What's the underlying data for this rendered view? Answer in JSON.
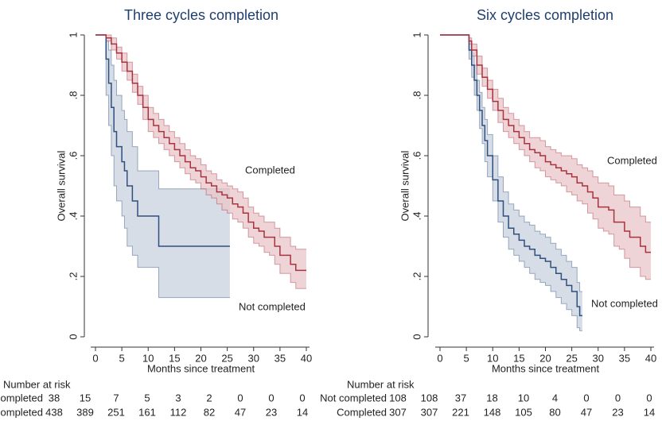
{
  "chart_data": [
    {
      "type": "km",
      "title": "Three cycles completion",
      "xlabel": "Months since treatment",
      "ylabel": "Overall survival",
      "xlim": [
        0,
        40
      ],
      "ylim": [
        0,
        1
      ],
      "xticks": [
        0,
        5,
        10,
        15,
        20,
        25,
        30,
        35,
        40
      ],
      "yticks": [
        0,
        {
          "value": 0.2,
          "label": ".2"
        },
        {
          "value": 0.4,
          "label": ".4"
        },
        {
          "value": 0.6,
          "label": ".6"
        },
        {
          "value": 0.8,
          "label": ".8"
        },
        1
      ],
      "series": [
        {
          "name": "Not completed",
          "color": "#2f4f7f",
          "band_color": "#c9d1de",
          "x": [
            0,
            2,
            2.5,
            3,
            3.5,
            4,
            5,
            5.5,
            6,
            7,
            8,
            12,
            25.5
          ],
          "values": [
            1,
            0.92,
            0.84,
            0.76,
            0.68,
            0.63,
            0.58,
            0.55,
            0.5,
            0.45,
            0.4,
            0.3,
            0.3
          ],
          "lower": [
            1,
            0.8,
            0.7,
            0.6,
            0.5,
            0.45,
            0.4,
            0.36,
            0.3,
            0.27,
            0.23,
            0.13,
            0.13
          ],
          "upper": [
            1,
            0.98,
            0.95,
            0.9,
            0.85,
            0.8,
            0.75,
            0.72,
            0.68,
            0.63,
            0.55,
            0.49,
            0.49
          ]
        },
        {
          "name": "Completed",
          "color": "#a8333f",
          "band_color": "#e9c6ca",
          "x": [
            0,
            2,
            3,
            4,
            5,
            6,
            7,
            8,
            9,
            10,
            11,
            12,
            13,
            14,
            15,
            16,
            17,
            18,
            19,
            20,
            21,
            22,
            23,
            24,
            25,
            26,
            27,
            28,
            29,
            30,
            31,
            32,
            33,
            34,
            35,
            36,
            37,
            38,
            39,
            40
          ],
          "values": [
            1,
            0.99,
            0.97,
            0.94,
            0.91,
            0.88,
            0.84,
            0.8,
            0.76,
            0.72,
            0.7,
            0.68,
            0.66,
            0.64,
            0.62,
            0.6,
            0.58,
            0.56,
            0.55,
            0.53,
            0.51,
            0.5,
            0.48,
            0.47,
            0.46,
            0.44,
            0.43,
            0.41,
            0.38,
            0.36,
            0.35,
            0.33,
            0.33,
            0.3,
            0.27,
            0.27,
            0.24,
            0.22,
            0.22,
            0.22
          ],
          "lower": [
            1,
            0.98,
            0.95,
            0.92,
            0.88,
            0.85,
            0.81,
            0.77,
            0.72,
            0.68,
            0.66,
            0.64,
            0.62,
            0.6,
            0.58,
            0.56,
            0.54,
            0.52,
            0.51,
            0.49,
            0.47,
            0.46,
            0.44,
            0.42,
            0.41,
            0.39,
            0.38,
            0.36,
            0.33,
            0.31,
            0.3,
            0.28,
            0.27,
            0.24,
            0.21,
            0.21,
            0.18,
            0.16,
            0.16,
            0.16
          ],
          "upper": [
            1,
            1,
            0.99,
            0.96,
            0.94,
            0.91,
            0.87,
            0.83,
            0.8,
            0.76,
            0.74,
            0.72,
            0.7,
            0.68,
            0.66,
            0.64,
            0.62,
            0.6,
            0.59,
            0.57,
            0.55,
            0.54,
            0.52,
            0.51,
            0.5,
            0.49,
            0.48,
            0.46,
            0.43,
            0.41,
            0.4,
            0.38,
            0.38,
            0.36,
            0.33,
            0.33,
            0.3,
            0.29,
            0.29,
            0.29
          ]
        }
      ],
      "risk_table": {
        "title": "Number at risk",
        "rows": [
          {
            "label": "Not completed",
            "values": [
              38,
              15,
              7,
              5,
              3,
              2,
              0,
              0,
              0
            ]
          },
          {
            "label": "Completed",
            "values": [
              438,
              389,
              251,
              161,
              112,
              82,
              47,
              23,
              14
            ]
          }
        ]
      }
    },
    {
      "type": "km",
      "title": "Six cycles completion",
      "xlabel": "Months since treatment",
      "ylabel": "Overall survival",
      "xlim": [
        0,
        40
      ],
      "ylim": [
        0,
        1
      ],
      "xticks": [
        0,
        5,
        10,
        15,
        20,
        25,
        30,
        35,
        40
      ],
      "yticks": [
        0,
        {
          "value": 0.2,
          "label": ".2"
        },
        {
          "value": 0.4,
          "label": ".4"
        },
        {
          "value": 0.6,
          "label": ".6"
        },
        {
          "value": 0.8,
          "label": ".8"
        },
        1
      ],
      "series": [
        {
          "name": "Not completed",
          "color": "#2f4f7f",
          "band_color": "#c9d1de",
          "x": [
            0,
            5,
            5.5,
            6,
            6.5,
            7,
            7.5,
            8,
            8.5,
            9,
            10,
            11,
            12,
            13,
            14,
            15,
            16,
            17,
            18,
            19,
            20,
            21,
            22,
            23,
            24,
            25,
            26,
            26.5,
            27
          ],
          "values": [
            1,
            1,
            0.95,
            0.9,
            0.85,
            0.8,
            0.75,
            0.7,
            0.65,
            0.6,
            0.52,
            0.45,
            0.4,
            0.36,
            0.34,
            0.32,
            0.3,
            0.29,
            0.27,
            0.26,
            0.25,
            0.23,
            0.21,
            0.19,
            0.17,
            0.15,
            0.1,
            0.07,
            0.07
          ],
          "lower": [
            1,
            1,
            0.92,
            0.86,
            0.8,
            0.75,
            0.69,
            0.64,
            0.58,
            0.53,
            0.45,
            0.38,
            0.33,
            0.29,
            0.27,
            0.25,
            0.23,
            0.21,
            0.19,
            0.18,
            0.17,
            0.15,
            0.13,
            0.11,
            0.09,
            0.07,
            0.03,
            0.02,
            0.02
          ],
          "upper": [
            1,
            1,
            0.98,
            0.94,
            0.9,
            0.85,
            0.81,
            0.76,
            0.72,
            0.67,
            0.6,
            0.53,
            0.48,
            0.44,
            0.42,
            0.4,
            0.38,
            0.37,
            0.35,
            0.34,
            0.33,
            0.31,
            0.29,
            0.27,
            0.25,
            0.23,
            0.18,
            0.15,
            0.15
          ]
        },
        {
          "name": "Completed",
          "color": "#a8333f",
          "band_color": "#e9c6ca",
          "x": [
            0,
            5,
            5.5,
            6,
            7,
            8,
            9,
            10,
            11,
            12,
            13,
            14,
            15,
            16,
            17,
            18,
            19,
            20,
            21,
            22,
            23,
            24,
            25,
            26,
            27,
            28,
            29,
            30,
            31,
            32,
            33,
            34,
            35,
            36,
            37,
            38,
            39,
            40
          ],
          "values": [
            1,
            1,
            0.98,
            0.95,
            0.9,
            0.86,
            0.82,
            0.78,
            0.75,
            0.72,
            0.7,
            0.68,
            0.66,
            0.64,
            0.62,
            0.61,
            0.6,
            0.58,
            0.57,
            0.56,
            0.55,
            0.54,
            0.53,
            0.51,
            0.5,
            0.48,
            0.46,
            0.43,
            0.43,
            0.42,
            0.38,
            0.38,
            0.35,
            0.33,
            0.33,
            0.3,
            0.28,
            0.28
          ],
          "lower": [
            1,
            1,
            0.97,
            0.93,
            0.87,
            0.83,
            0.79,
            0.75,
            0.71,
            0.68,
            0.66,
            0.64,
            0.62,
            0.6,
            0.58,
            0.56,
            0.55,
            0.53,
            0.52,
            0.51,
            0.5,
            0.48,
            0.47,
            0.45,
            0.44,
            0.41,
            0.39,
            0.36,
            0.35,
            0.34,
            0.3,
            0.29,
            0.26,
            0.23,
            0.23,
            0.2,
            0.19,
            0.19
          ],
          "upper": [
            1,
            1,
            0.99,
            0.97,
            0.93,
            0.89,
            0.85,
            0.82,
            0.79,
            0.76,
            0.74,
            0.72,
            0.7,
            0.68,
            0.66,
            0.66,
            0.65,
            0.63,
            0.62,
            0.61,
            0.6,
            0.6,
            0.59,
            0.57,
            0.56,
            0.55,
            0.53,
            0.51,
            0.51,
            0.5,
            0.47,
            0.47,
            0.45,
            0.43,
            0.43,
            0.4,
            0.38,
            0.38
          ]
        }
      ],
      "risk_table": {
        "title": "Number at risk",
        "rows": [
          {
            "label": "Not completed",
            "values": [
              108,
              108,
              37,
              18,
              10,
              4,
              0,
              0,
              0
            ]
          },
          {
            "label": "Completed",
            "values": [
              307,
              307,
              221,
              148,
              105,
              80,
              47,
              23,
              14
            ]
          }
        ]
      }
    }
  ]
}
